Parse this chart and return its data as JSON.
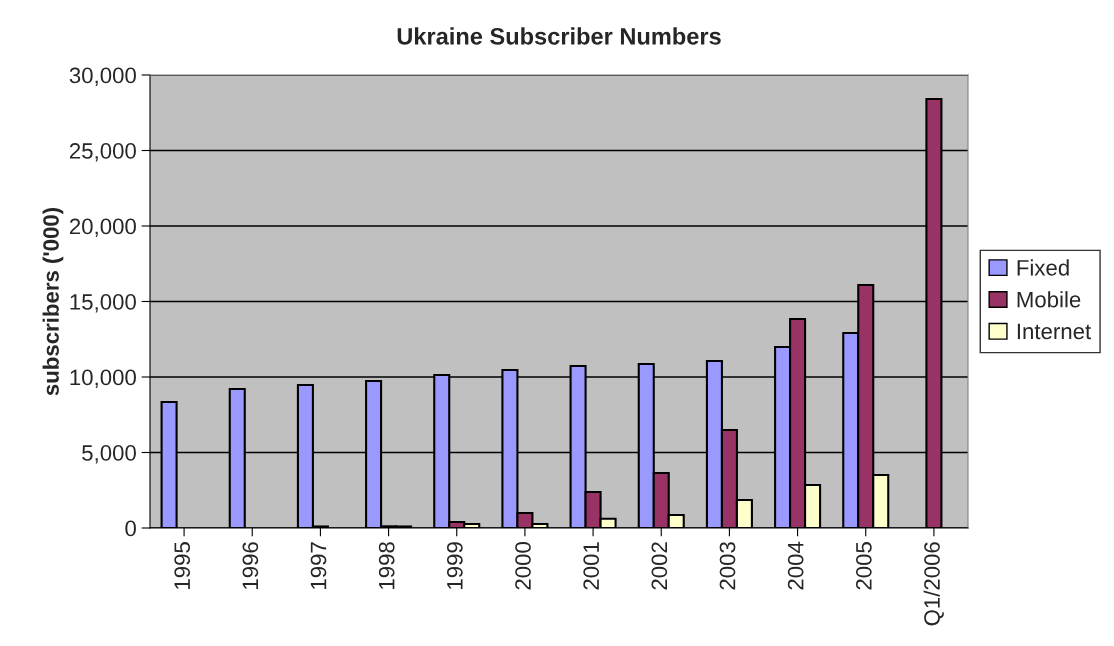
{
  "chart_data": {
    "type": "bar",
    "title": "Ukraine Subscriber Numbers",
    "ylabel": "subscribers ('000)",
    "categories": [
      "1995",
      "1996",
      "1997",
      "1998",
      "1999",
      "2000",
      "2001",
      "2002",
      "2003",
      "2004",
      "2005",
      "Q1/2006"
    ],
    "series": [
      {
        "name": "Fixed",
        "color": "#9999ff",
        "values": [
          8340,
          9200,
          9470,
          9730,
          10130,
          10460,
          10730,
          10860,
          11060,
          11990,
          12910,
          null
        ]
      },
      {
        "name": "Mobile",
        "color": "#993366",
        "values": [
          null,
          null,
          100,
          110,
          400,
          990,
          2380,
          3640,
          6490,
          13840,
          16090,
          28410
        ]
      },
      {
        "name": "Internet",
        "color": "#ffffcc",
        "values": [
          null,
          null,
          null,
          100,
          260,
          265,
          610,
          860,
          1850,
          2850,
          3510,
          null
        ]
      }
    ],
    "ylim": [
      0,
      30000
    ],
    "yticks": [
      {
        "value": 0,
        "label": "0"
      },
      {
        "value": 5000,
        "label": "5,000"
      },
      {
        "value": 10000,
        "label": "10,000"
      },
      {
        "value": 15000,
        "label": "15,000"
      },
      {
        "value": 20000,
        "label": "20,000"
      },
      {
        "value": 25000,
        "label": "25,000"
      },
      {
        "value": 30000,
        "label": "30,000"
      }
    ],
    "grid": "y",
    "legend": "right"
  }
}
